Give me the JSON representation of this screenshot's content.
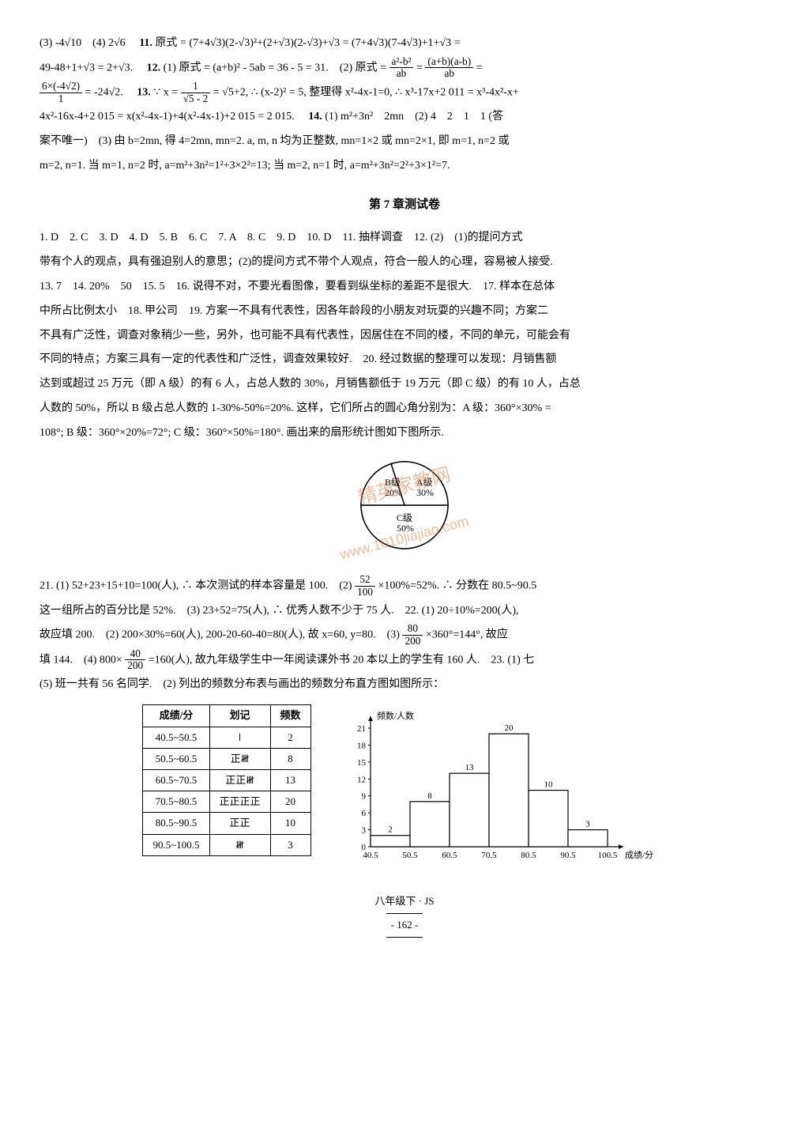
{
  "line1a": "(3) -4√10　(4) 2√6　",
  "line1b": "11.",
  "line1c": " 原式 = (7+4√3)(2-√3)²+(2+√3)(2-√3)+√3 = (7+4√3)(7-4√3)+1+√3 =",
  "line2a": "49-48+1+√3 = 2+√3.　",
  "line2b": "12.",
  "line2c": " (1) 原式 = (a+b)² - 5ab = 36 - 5 = 31.　(2) 原式 = ",
  "frac1_num": "a²-b²",
  "frac1_den": "ab",
  "line2d": " = ",
  "frac2_num": "(a+b)(a-b)",
  "frac2_den": "ab",
  "line2e": " =",
  "frac3_num": "6×(-4√2)",
  "frac3_den": "1",
  "line3a": " = -24√2.　",
  "line3b": "13.",
  "line3c": " ∵ x = ",
  "frac4_num": "1",
  "frac4_den": "√5 - 2",
  "line3d": " = √5+2, ∴ (x-2)² = 5, 整理得 x²-4x-1=0, ∴ x³-17x+2 011 = x³-4x²-x+",
  "line4a": "4x²-16x-4+2 015 = x(x²-4x-1)+4(x²-4x-1)+2 015 = 2 015.　",
  "line4b": "14.",
  "line4c": " (1) m²+3n²　2mn　(2) 4　2　1　1 (答",
  "line5": "案不唯一)　(3) 由 b=2mn, 得 4=2mn, mn=2. a, m, n 均为正整数, mn=1×2 或 mn=2×1, 即 m=1, n=2 或",
  "line6": "m=2, n=1. 当 m=1, n=2 时, a=m²+3n²=1²+3×2²=13; 当 m=2, n=1 时, a=m²+3n²=2²+3×1²=7.",
  "sectionTitle": "第 7 章测试卷",
  "p7_1": "1. D　2. C　3. D　4. D　5. B　6. C　7. A　8. C　9. D　10. D　11. 抽样调查　12. (2)　(1)的提问方式",
  "p7_2": "带有个人的观点，具有强迫别人的意思；(2)的提问方式不带个人观点，符合一般人的心理，容易被人接受.",
  "p7_3": "13. 7　14. 20%　50　15. 5　16. 说得不对，不要光看图像，要看到纵坐标的差距不是很大.　17. 样本在总体",
  "p7_4": "中所占比例太小　18. 甲公司　19. 方案一不具有代表性，因各年龄段的小朋友对玩耍的兴趣不同；方案二",
  "p7_5": "不具有广泛性，调查对象稍少一些，另外，也可能不具有代表性，因居住在不同的楼，不同的单元，可能会有",
  "p7_6": "不同的特点；方案三具有一定的代表性和广泛性，调查效果较好.　20. 经过数据的整理可以发现：月销售额",
  "p7_7": "达到或超过 25 万元（即 A 级）的有 6 人，占总人数的 30%，月销售额低于 19 万元（即 C 级）的有 10 人，占总",
  "p7_8": "人数的 50%，所以 B 级占总人数的 1-30%-50%=20%. 这样，它们所占的圆心角分别为：A 级：360°×30% =",
  "p7_9": "108°; B 级：360°×20%=72°; C 级：360°×50%=180°. 画出来的扇形统计图如下图所示.",
  "pie": {
    "labels": {
      "A": "A级",
      "Ap": "30%",
      "B": "B级",
      "Bp": "20%",
      "C": "C级",
      "Cp": "50%"
    },
    "colors": {
      "stroke": "#000",
      "fill": "#ffffff"
    }
  },
  "watermark": "www.1010jiajiao.com",
  "watermark2": "精英家教网",
  "p21a": "21. (1) 52+23+15+10=100(人), ∴ 本次测试的样本容量是 100.　(2) ",
  "frac5_num": "52",
  "frac5_den": "100",
  "p21b": "×100%=52%. ∴ 分数在 80.5~90.5",
  "p21c": "这一组所占的百分比是 52%.　(3) 23+52=75(人), ∴ 优秀人数不少于 75 人.　22. (1) 20÷10%=200(人),",
  "p21d": "故应填 200.　(2) 200×30%=60(人), 200-20-60-40=80(人), 故 x=60, y=80.　(3) ",
  "frac6_num": "80",
  "frac6_den": "200",
  "p21e": "×360°=144°, 故应",
  "p21f": "填 144.　(4) 800×",
  "frac7_num": "40",
  "frac7_den": "200",
  "p21g": "=160(人), 故九年级学生中一年阅读课外书 20 本以上的学生有 160 人.　23. (1) 七",
  "p21h": "(5) 班一共有 56 名同学.　(2) 列出的频数分布表与画出的频数分布直方图如图所示：",
  "table": {
    "headers": [
      "成绩/分",
      "划记",
      "频数"
    ],
    "rows": [
      [
        "40.5~50.5",
        "𝍷",
        "2"
      ],
      [
        "50.5~60.5",
        "正𝍸",
        "8"
      ],
      [
        "60.5~70.5",
        "正正𝍸",
        "13"
      ],
      [
        "70.5~80.5",
        "正正正正",
        "20"
      ],
      [
        "80.5~90.5",
        "正正",
        "10"
      ],
      [
        "90.5~100.5",
        "𝍸",
        "3"
      ]
    ]
  },
  "histogram": {
    "ylabel": "频数/人数",
    "xlabel": "成绩/分",
    "xticks": [
      "40.5",
      "50.5",
      "60.5",
      "70.5",
      "80.5",
      "90.5",
      "100.5"
    ],
    "yticks": [
      0,
      3,
      6,
      9,
      12,
      15,
      18,
      21
    ],
    "bars": [
      {
        "x": 0,
        "h": 2,
        "label": "2"
      },
      {
        "x": 1,
        "h": 8,
        "label": "8"
      },
      {
        "x": 2,
        "h": 13,
        "label": "13"
      },
      {
        "x": 3,
        "h": 20,
        "label": "20"
      },
      {
        "x": 4,
        "h": 10,
        "label": "10"
      },
      {
        "x": 5,
        "h": 3,
        "label": "3"
      }
    ],
    "colors": {
      "stroke": "#000",
      "fill": "#ffffff"
    },
    "font_size": 11
  },
  "footer": {
    "grade": "八年级下 · JS",
    "page": "- 162 -"
  }
}
